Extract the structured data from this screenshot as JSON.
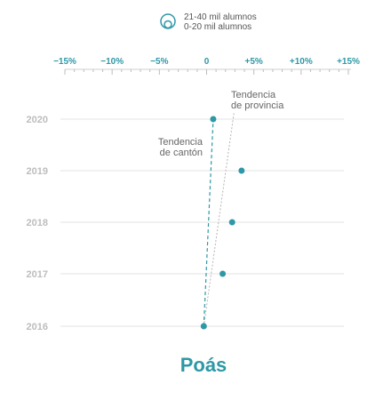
{
  "colors": {
    "accent": "#2e98a6",
    "grid": "#e3e3e3",
    "province_line": "#b5b5b5",
    "year_label": "#bdbdbd",
    "annotation": "#666666"
  },
  "legend": {
    "icon": "nested-circles-icon",
    "large_label": "21-40 mil alumnos",
    "small_label": "0-20 mil alumnos"
  },
  "chart_data": {
    "type": "scatter",
    "orientation": "horizontal",
    "title": "Poás",
    "x_ticks": [
      "−15%",
      "−10%",
      "−5%",
      "0",
      "+5%",
      "+10%",
      "+15%"
    ],
    "x_tick_values": [
      -15,
      -10,
      -5,
      0,
      5,
      10,
      15
    ],
    "xlim": [
      -15,
      15
    ],
    "categories": [
      "2020",
      "2019",
      "2018",
      "2017",
      "2016"
    ],
    "points": [
      {
        "year": "2020",
        "value": 0.7
      },
      {
        "year": "2019",
        "value": 3.7
      },
      {
        "year": "2018",
        "value": 2.7
      },
      {
        "year": "2017",
        "value": 1.7
      },
      {
        "year": "2016",
        "value": -0.3
      }
    ],
    "trend_canton": {
      "label_line1": "Tendencia",
      "label_line2": "de cantón",
      "start": {
        "year": "2016",
        "value": -0.3
      },
      "end": {
        "year": "2020",
        "value": 0.7
      }
    },
    "trend_province": {
      "label_line1": "Tendencia",
      "label_line2": "de provincia",
      "start": {
        "year": "2016",
        "value": -0.3
      },
      "end": {
        "year": "2020",
        "value": 2.8
      }
    },
    "grid": true
  }
}
